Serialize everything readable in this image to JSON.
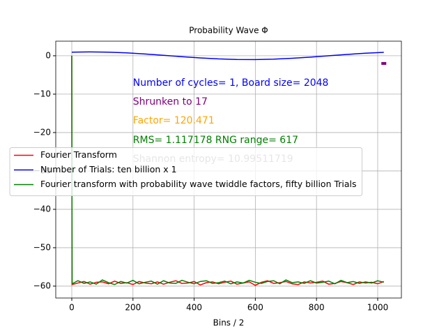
{
  "chart_data": {
    "type": "line",
    "title": "Probability Wave Φ",
    "xlabel": "Bins / 2",
    "xlim": [
      -52.4,
      1077.5
    ],
    "ylim": [
      -63.1,
      3.8
    ],
    "xticks": [
      0,
      200,
      400,
      600,
      800,
      1000
    ],
    "yticks": [
      0,
      {
        "value": -10,
        "label": "−10"
      },
      {
        "value": -20,
        "label": "−20"
      },
      {
        "value": -30,
        "label": "−30"
      },
      {
        "value": -40,
        "label": "−40"
      },
      {
        "value": -50,
        "label": "−50"
      },
      {
        "value": -60,
        "label": "−60"
      }
    ],
    "grid": true,
    "legend": "center left",
    "series": [
      {
        "name": "Fourier Transform",
        "color": "#ff0000",
        "x": [
          0,
          1,
          20,
          40,
          60,
          80,
          100,
          120,
          140,
          160,
          180,
          200,
          220,
          240,
          260,
          280,
          300,
          320,
          340,
          360,
          380,
          400,
          420,
          440,
          460,
          480,
          500,
          520,
          540,
          560,
          580,
          600,
          620,
          640,
          660,
          680,
          700,
          720,
          740,
          760,
          780,
          800,
          820,
          840,
          860,
          880,
          900,
          920,
          940,
          960,
          980,
          1000,
          1020
        ],
        "values": [
          0,
          -59.6,
          -59.2,
          -58.8,
          -59.5,
          -59.0,
          -58.9,
          -59.4,
          -58.7,
          -59.3,
          -59.1,
          -59.6,
          -58.8,
          -59.2,
          -59.4,
          -58.9,
          -59.5,
          -59.0,
          -58.6,
          -59.3,
          -59.2,
          -58.8,
          -59.7,
          -59.1,
          -58.9,
          -59.4,
          -59.0,
          -58.7,
          -59.5,
          -59.2,
          -58.9,
          -59.8,
          -59.0,
          -58.6,
          -59.3,
          -59.1,
          -58.8,
          -59.4,
          -59.6,
          -58.9,
          -59.2,
          -59.0,
          -58.7,
          -59.5,
          -59.3,
          -58.8,
          -59.1,
          -59.6,
          -58.9,
          -59.2,
          -59.0,
          -59.4,
          -58.8
        ]
      },
      {
        "name": "Number of Trials: ten billion x 1",
        "color": "#0000ff",
        "x": [
          0,
          60,
          120,
          180,
          240,
          300,
          360,
          420,
          480,
          540,
          600,
          660,
          720,
          780,
          840,
          900,
          960,
          1020
        ],
        "values": [
          0.935,
          1,
          0.935,
          0.749,
          0.464,
          0.121,
          -0.239,
          -0.568,
          -0.823,
          -0.971,
          -0.992,
          -0.885,
          -0.665,
          -0.355,
          0.0,
          0.355,
          0.665,
          0.886
        ]
      },
      {
        "name": "Fourier transform with probability wave twiddle factors, fifty billion Trials",
        "color": "#008000",
        "x": [
          0,
          1,
          20,
          40,
          60,
          80,
          100,
          120,
          140,
          160,
          180,
          200,
          220,
          240,
          260,
          280,
          300,
          320,
          340,
          360,
          380,
          400,
          420,
          440,
          460,
          480,
          500,
          520,
          540,
          560,
          580,
          600,
          620,
          640,
          660,
          680,
          700,
          720,
          740,
          760,
          780,
          800,
          820,
          840,
          860,
          880,
          900,
          920,
          940,
          960,
          980,
          1000,
          1020
        ],
        "values": [
          0,
          -59.4,
          -58.6,
          -59.3,
          -58.9,
          -59.5,
          -58.4,
          -59.1,
          -59.6,
          -58.8,
          -59.2,
          -58.5,
          -59.4,
          -59.0,
          -58.7,
          -59.5,
          -58.6,
          -59.2,
          -59.3,
          -58.5,
          -59.0,
          -59.4,
          -58.8,
          -58.6,
          -59.3,
          -59.1,
          -58.7,
          -59.4,
          -58.9,
          -59.2,
          -58.5,
          -59.0,
          -59.3,
          -58.8,
          -58.6,
          -59.4,
          -58.4,
          -59.1,
          -58.9,
          -59.3,
          -58.6,
          -59.2,
          -59.0,
          -58.7,
          -59.4,
          -58.5,
          -59.1,
          -58.8,
          -59.3,
          -58.9,
          -59.2,
          -58.6,
          -59.0
        ]
      }
    ],
    "markers": {
      "color": "#800080",
      "x": [
        1012,
        1028
      ],
      "values": [
        -2,
        -2
      ]
    },
    "annotations": [
      {
        "text": "Number of cycles= 1, Board size= 2048",
        "x": 200,
        "y": -7.1,
        "color": "#0000ff"
      },
      {
        "text": "Shrunken to 17",
        "x": 200,
        "y": -12,
        "color": "#800080"
      },
      {
        "text": "Factor= 120.471",
        "x": 200,
        "y": -16.9,
        "color": "#ffa500"
      },
      {
        "text": "RMS= 1.117178    RNG range= 617",
        "x": 200,
        "y": -22,
        "color": "#008000"
      },
      {
        "text": "Shannon entropy= 10.99511719",
        "x": 200,
        "y": -26.9,
        "color": "#808080"
      }
    ]
  }
}
